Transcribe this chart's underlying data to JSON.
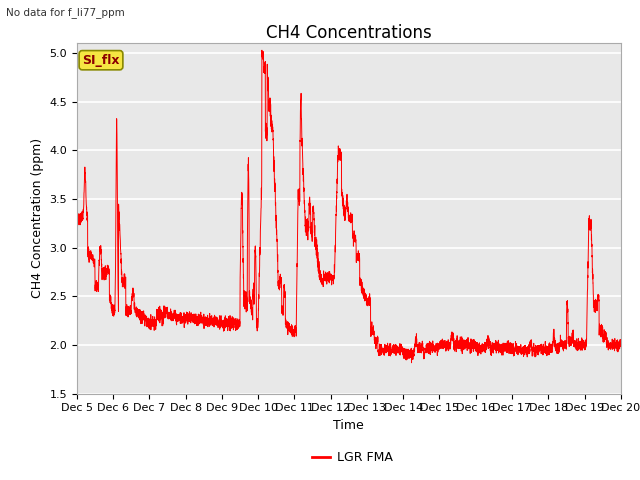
{
  "title": "CH4 Concentrations",
  "xlabel": "Time",
  "ylabel": "CH4 Concentration (ppm)",
  "top_left_note": "No data for f_li77_ppm",
  "legend_label": "LGR FMA",
  "legend_box_label": "SI_flx",
  "ylim": [
    1.5,
    5.1
  ],
  "yticks": [
    1.5,
    2.0,
    2.5,
    3.0,
    3.5,
    4.0,
    4.5,
    5.0
  ],
  "xtick_labels": [
    "Dec 5",
    "Dec 6",
    "Dec 7",
    "Dec 8",
    "Dec 9",
    "Dec 10",
    "Dec 11",
    "Dec 12",
    "Dec 13",
    "Dec 14",
    "Dec 15",
    "Dec 16",
    "Dec 17",
    "Dec 18",
    "Dec 19",
    "Dec 20"
  ],
  "line_color": "#ff0000",
  "axes_bg_color": "#e8e8e8",
  "grid_color": "#ffffff",
  "title_fontsize": 12,
  "axis_label_fontsize": 9,
  "tick_fontsize": 8
}
